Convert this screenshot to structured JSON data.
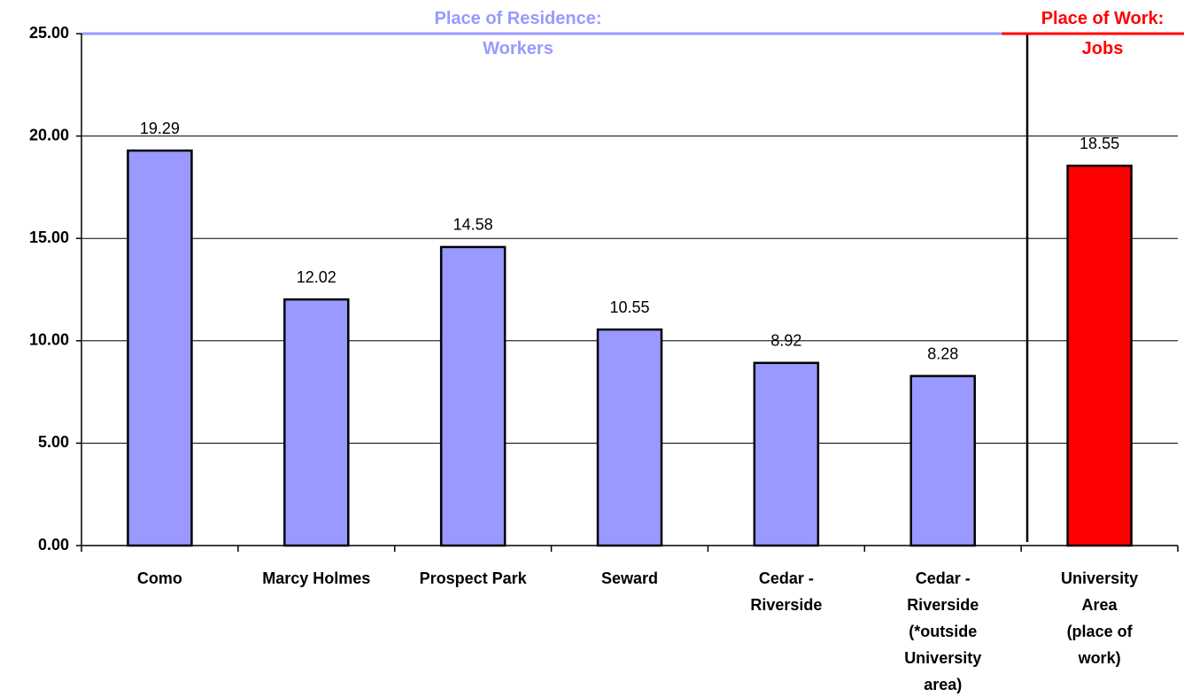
{
  "chart_data": {
    "type": "bar",
    "categories": [
      "Como",
      "Marcy Holmes",
      "Prospect Park",
      "Seward",
      "Cedar -\nRiverside",
      "Cedar -\nRiverside\n(*outside\nUniversity\narea)",
      "University\nArea\n(place of\nwork)"
    ],
    "values": [
      19.29,
      12.02,
      14.58,
      10.55,
      8.92,
      8.28,
      18.55
    ],
    "colors": [
      "#9999ff",
      "#9999ff",
      "#9999ff",
      "#9999ff",
      "#9999ff",
      "#9999ff",
      "#ff0000"
    ],
    "ylim": [
      0,
      25
    ],
    "yticks": [
      {
        "value": 0,
        "label": "0.00"
      },
      {
        "value": 5,
        "label": "5.00"
      },
      {
        "value": 10,
        "label": "10.00"
      },
      {
        "value": 15,
        "label": "15.00"
      },
      {
        "value": 20,
        "label": "20.00"
      },
      {
        "value": 25,
        "label": "25.00"
      }
    ],
    "grid": true,
    "annotations": [
      {
        "text": "Place of Residence:\nWorkers",
        "color": "#9999ff"
      },
      {
        "text": "Place of Work:\nJobs",
        "color": "#ff0000"
      }
    ]
  }
}
